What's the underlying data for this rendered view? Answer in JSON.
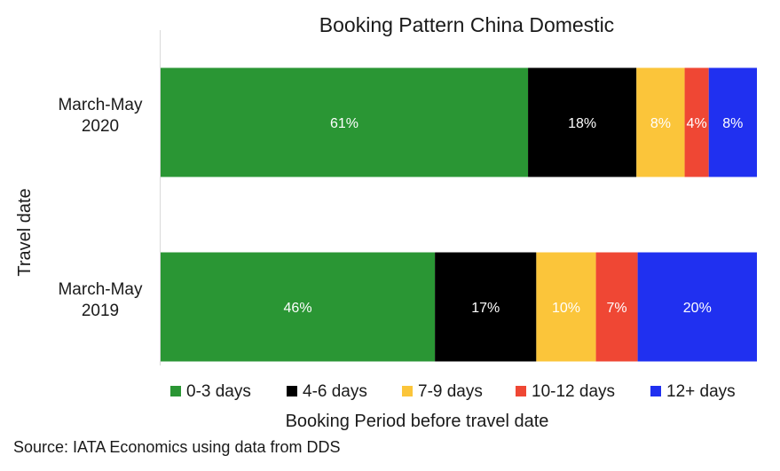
{
  "chart_data": {
    "type": "bar",
    "orientation": "horizontal",
    "stacked": true,
    "percent": true,
    "title": "Booking Pattern China Domestic",
    "xlabel": "Booking Period before travel date",
    "ylabel": "Travel date",
    "categories": [
      [
        "March-May",
        "2020"
      ],
      [
        "March-May",
        "2019"
      ]
    ],
    "series": [
      {
        "name": "0-3 days",
        "color": "#2a9634",
        "values": [
          61,
          46
        ],
        "labels": [
          "61%",
          "46%"
        ]
      },
      {
        "name": "4-6 days",
        "color": "#000000",
        "values": [
          18,
          17
        ],
        "labels": [
          "18%",
          "17%"
        ]
      },
      {
        "name": "7-9 days",
        "color": "#fbc53a",
        "values": [
          8,
          10
        ],
        "labels": [
          "8%",
          "10%"
        ]
      },
      {
        "name": "10-12 days",
        "color": "#ef4734",
        "values": [
          4,
          7
        ],
        "labels": [
          "4%",
          "7%"
        ]
      },
      {
        "name": "12+ days",
        "color": "#2030f0",
        "values": [
          8,
          20
        ],
        "labels": [
          "8%",
          "20%"
        ]
      }
    ],
    "xlim": [
      0,
      100
    ],
    "grid": false,
    "legend": "bottom"
  },
  "source_note": "Source: IATA Economics using data from DDS"
}
